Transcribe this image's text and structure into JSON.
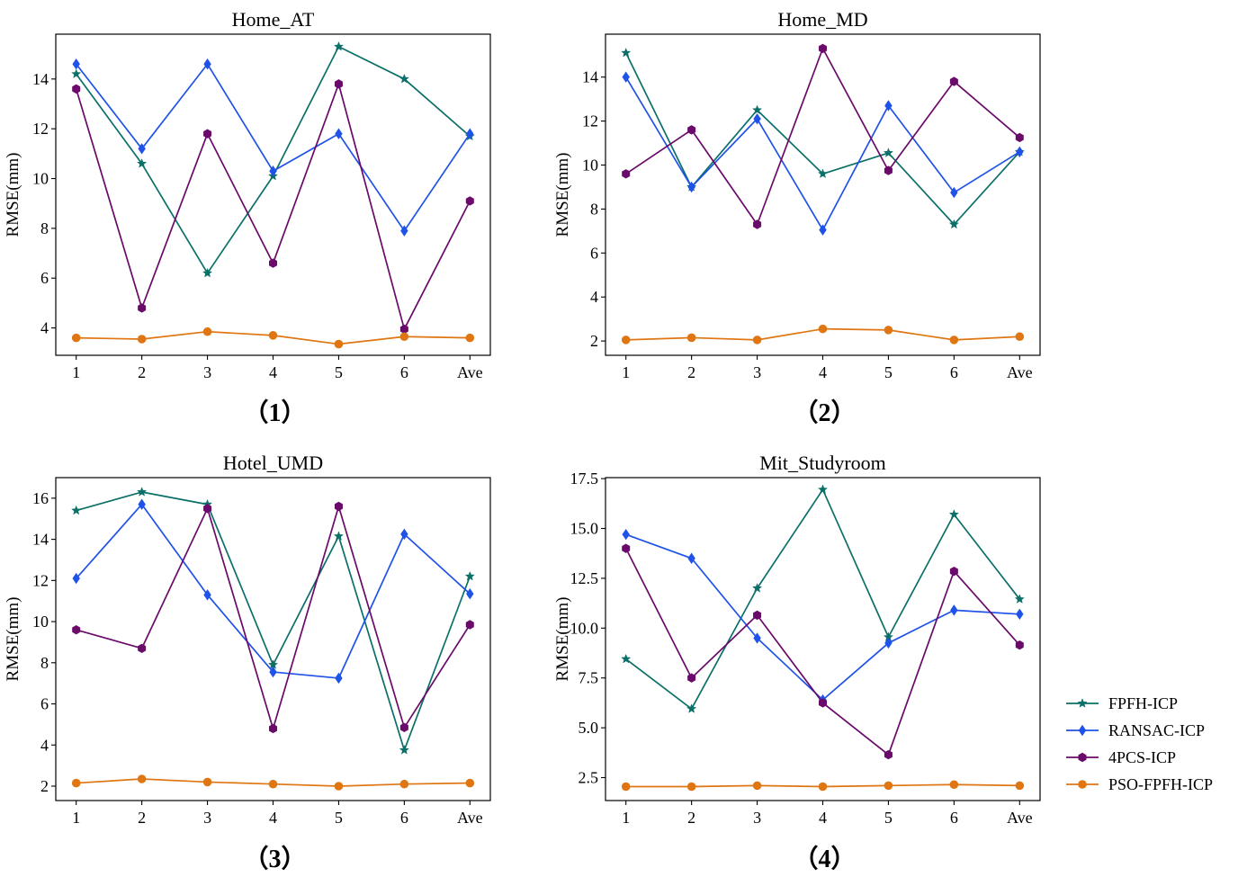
{
  "colors": {
    "FPFH-ICP": "#0b7068",
    "RANSAC-ICP": "#1f52e8",
    "4PCS-ICP": "#6a0a6a",
    "PSO-FPFH-ICP": "#df7612"
  },
  "legend": {
    "position": "right",
    "items": [
      {
        "label": "FPFH-ICP",
        "marker": "star"
      },
      {
        "label": "RANSAC-ICP",
        "marker": "diamond"
      },
      {
        "label": "4PCS-ICP",
        "marker": "hexagon"
      },
      {
        "label": "PSO-FPFH-ICP",
        "marker": "circle"
      }
    ]
  },
  "chart_data": [
    {
      "type": "line",
      "title": "Home_AT",
      "caption": "（1）",
      "ylabel": "RMSE(mm)",
      "xlabel": "",
      "categories": [
        "1",
        "2",
        "3",
        "4",
        "5",
        "6",
        "Ave"
      ],
      "ylim": [
        2.9,
        15.8
      ],
      "yticks": [
        4,
        6,
        8,
        10,
        12,
        14
      ],
      "tick_decimals": 0,
      "series": [
        {
          "name": "FPFH-ICP",
          "marker": "star",
          "values": [
            14.2,
            10.6,
            6.2,
            10.1,
            15.3,
            14.0,
            11.7
          ]
        },
        {
          "name": "RANSAC-ICP",
          "marker": "diamond",
          "values": [
            14.6,
            11.2,
            14.6,
            10.3,
            11.8,
            7.9,
            11.8
          ]
        },
        {
          "name": "4PCS-ICP",
          "marker": "hexagon",
          "values": [
            13.6,
            4.8,
            11.8,
            6.6,
            13.8,
            3.95,
            9.1
          ]
        },
        {
          "name": "PSO-FPFH-ICP",
          "marker": "circle",
          "values": [
            3.6,
            3.55,
            3.85,
            3.7,
            3.35,
            3.65,
            3.6
          ]
        }
      ]
    },
    {
      "type": "line",
      "title": "Home_MD",
      "caption": "（2）",
      "ylabel": "RMSE(mm)",
      "xlabel": "",
      "categories": [
        "1",
        "2",
        "3",
        "4",
        "5",
        "6",
        "Ave"
      ],
      "ylim": [
        1.35,
        15.95
      ],
      "yticks": [
        2,
        4,
        6,
        8,
        10,
        12,
        14
      ],
      "tick_decimals": 0,
      "series": [
        {
          "name": "FPFH-ICP",
          "marker": "star",
          "values": [
            15.1,
            9.0,
            12.5,
            9.6,
            10.55,
            7.3,
            10.6
          ]
        },
        {
          "name": "RANSAC-ICP",
          "marker": "diamond",
          "values": [
            14.0,
            9.0,
            12.1,
            7.05,
            12.7,
            8.75,
            10.6
          ]
        },
        {
          "name": "4PCS-ICP",
          "marker": "hexagon",
          "values": [
            9.6,
            11.6,
            7.3,
            15.3,
            9.75,
            13.8,
            11.25
          ]
        },
        {
          "name": "PSO-FPFH-ICP",
          "marker": "circle",
          "values": [
            2.05,
            2.15,
            2.05,
            2.55,
            2.5,
            2.05,
            2.2
          ]
        }
      ]
    },
    {
      "type": "line",
      "title": "Hotel_UMD",
      "caption": "（3）",
      "ylabel": "RMSE(mm)",
      "xlabel": "",
      "categories": [
        "1",
        "2",
        "3",
        "4",
        "5",
        "6",
        "Ave"
      ],
      "ylim": [
        1.3,
        17.0
      ],
      "yticks": [
        2,
        4,
        6,
        8,
        10,
        12,
        14,
        16
      ],
      "tick_decimals": 0,
      "series": [
        {
          "name": "FPFH-ICP",
          "marker": "star",
          "values": [
            15.4,
            16.3,
            15.7,
            7.9,
            14.15,
            3.75,
            12.2
          ]
        },
        {
          "name": "RANSAC-ICP",
          "marker": "diamond",
          "values": [
            12.1,
            15.7,
            11.3,
            7.55,
            7.25,
            14.25,
            11.35
          ]
        },
        {
          "name": "4PCS-ICP",
          "marker": "hexagon",
          "values": [
            9.6,
            8.7,
            15.5,
            4.8,
            15.6,
            4.85,
            9.85
          ]
        },
        {
          "name": "PSO-FPFH-ICP",
          "marker": "circle",
          "values": [
            2.15,
            2.35,
            2.2,
            2.1,
            2.0,
            2.1,
            2.15
          ]
        }
      ]
    },
    {
      "type": "line",
      "title": "Mit_Studyroom",
      "caption": "（4）",
      "ylabel": "RMSE(mm)",
      "xlabel": "",
      "categories": [
        "1",
        "2",
        "3",
        "4",
        "5",
        "6",
        "Ave"
      ],
      "ylim": [
        1.35,
        17.55
      ],
      "yticks": [
        2.5,
        5.0,
        7.5,
        10.0,
        12.5,
        15.0,
        17.5
      ],
      "tick_decimals": 1,
      "series": [
        {
          "name": "FPFH-ICP",
          "marker": "star",
          "values": [
            8.45,
            5.95,
            12.0,
            16.95,
            9.55,
            15.7,
            11.45
          ]
        },
        {
          "name": "RANSAC-ICP",
          "marker": "diamond",
          "values": [
            14.7,
            13.5,
            9.5,
            6.4,
            9.25,
            10.9,
            10.7
          ]
        },
        {
          "name": "4PCS-ICP",
          "marker": "hexagon",
          "values": [
            14.0,
            7.5,
            10.65,
            6.25,
            3.65,
            12.85,
            9.15
          ]
        },
        {
          "name": "PSO-FPFH-ICP",
          "marker": "circle",
          "values": [
            2.05,
            2.05,
            2.1,
            2.05,
            2.1,
            2.15,
            2.1
          ]
        }
      ]
    }
  ]
}
